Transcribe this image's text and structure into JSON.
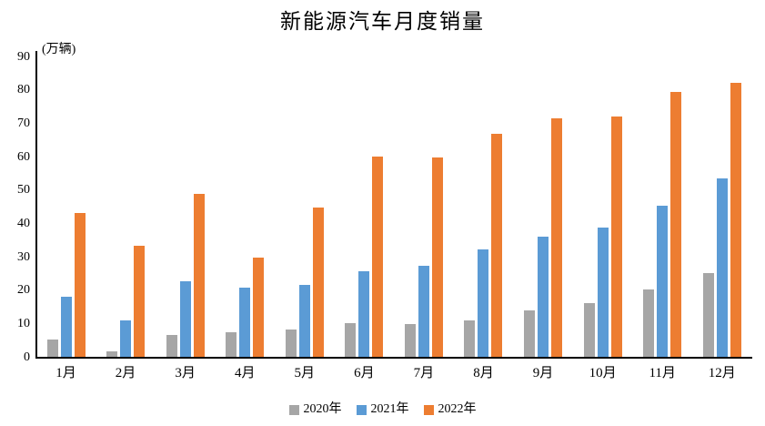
{
  "chart_data": {
    "type": "bar",
    "title": "新能源汽车月度销量",
    "ylabel": "(万辆)",
    "ylim": [
      0,
      90
    ],
    "y_ticks": [
      0,
      10,
      20,
      30,
      40,
      50,
      60,
      70,
      80,
      90
    ],
    "grid": false,
    "legend_position": "bottom",
    "categories": [
      "1月",
      "2月",
      "3月",
      "4月",
      "5月",
      "6月",
      "7月",
      "8月",
      "9月",
      "10月",
      "11月",
      "12月"
    ],
    "series": [
      {
        "name": "2020年",
        "color": "#A6A6A6",
        "values": [
          5.2,
          1.7,
          6.6,
          7.3,
          8.1,
          10.2,
          9.8,
          10.9,
          13.9,
          16.0,
          20.2,
          25.2
        ]
      },
      {
        "name": "2021年",
        "color": "#5B9BD5",
        "values": [
          17.9,
          10.8,
          22.6,
          20.7,
          21.6,
          25.7,
          27.2,
          32.2,
          35.9,
          38.6,
          45.4,
          53.4
        ]
      },
      {
        "name": "2022年",
        "color": "#ED7D31",
        "values": [
          43.2,
          33.4,
          48.9,
          29.8,
          44.8,
          59.9,
          59.7,
          66.9,
          71.4,
          71.9,
          79.3,
          82.0
        ]
      }
    ]
  }
}
